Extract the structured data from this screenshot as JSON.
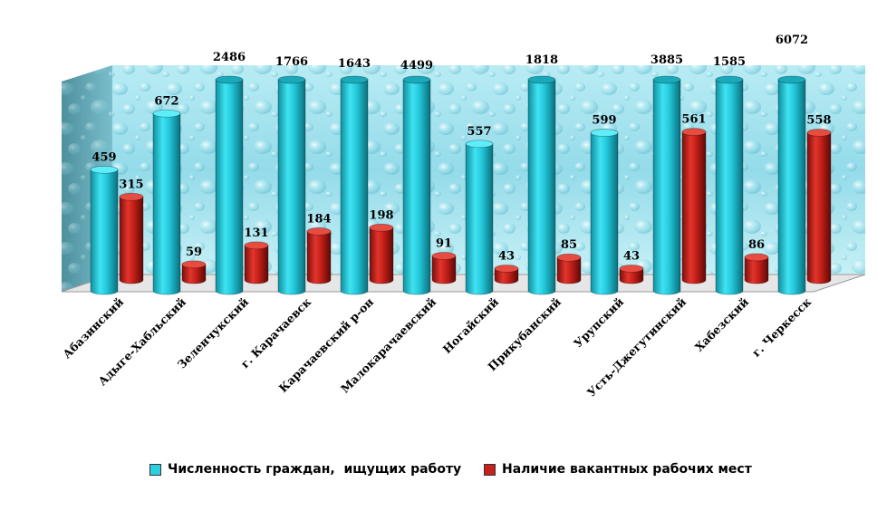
{
  "chart_data": {
    "type": "bar",
    "style": "3d-cylinder",
    "categories": [
      "Абазинский",
      "Адыге-Хабльский",
      "Зеленчукский",
      "г. Карачаевск",
      "Карачаевский р-он",
      "Малокарачаевский",
      "Ногайский",
      "Прикубанский",
      "Урупский",
      "Усть-Джегутинский",
      "Хабезский",
      "г. Черкесск"
    ],
    "series": [
      {
        "name": "Численность граждан,  ищущих работу",
        "color": "#2ccfe0",
        "values": [
          459,
          672,
          2486,
          1766,
          1643,
          4499,
          557,
          1818,
          599,
          3885,
          1585,
          6072
        ]
      },
      {
        "name": "Наличие вакантных рабочих мест",
        "color": "#c8201b",
        "values": [
          315,
          59,
          131,
          184,
          198,
          91,
          43,
          85,
          43,
          561,
          86,
          558
        ]
      }
    ],
    "axis_max_display": 800,
    "note_clipped": "values above axis maximum are drawn clipped at the top",
    "legend_position": "bottom",
    "gridlines": false,
    "background": "water-drops"
  }
}
